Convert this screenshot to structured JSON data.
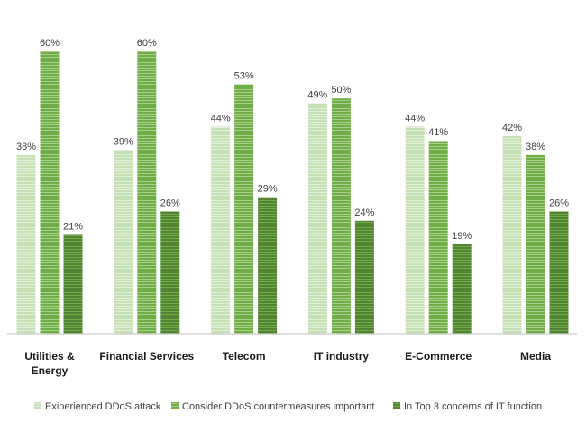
{
  "chart_data": {
    "type": "bar",
    "categories": [
      "Utilities & Energy",
      "Financial Services",
      "Telecom",
      "IT industry",
      "E-Commerce",
      "Media"
    ],
    "category_lines": [
      [
        "Utilities  &",
        "Energy"
      ],
      [
        "Financial Services"
      ],
      [
        "Telecom"
      ],
      [
        "IT industry"
      ],
      [
        "E-Commerce"
      ],
      [
        "Media"
      ]
    ],
    "series": [
      {
        "name": "Exiperienced DDoS attack",
        "values": [
          38,
          39,
          44,
          49,
          44,
          42
        ],
        "labels": [
          "38%",
          "39%",
          "44%",
          "49%",
          "44%",
          "42%"
        ],
        "color": "#c5e0b4",
        "stripe": "#e2efda"
      },
      {
        "name": "Consider DDoS countermeasures important",
        "values": [
          60,
          60,
          53,
          50,
          41,
          38
        ],
        "labels": [
          "60%",
          "60%",
          "53%",
          "50%",
          "41%",
          "38%"
        ],
        "color": "#70ad47",
        "stripe": "#a9d18e"
      },
      {
        "name": "In Top 3 concerns of IT function",
        "values": [
          21,
          26,
          29,
          24,
          19,
          26
        ],
        "labels": [
          "21%",
          "26%",
          "29%",
          "24%",
          "19%",
          "26%"
        ],
        "color": "#548235",
        "stripe": "#70ad47"
      }
    ],
    "unit": "%",
    "ylim": [
      0,
      60
    ],
    "grid": false,
    "legend_position": "bottom"
  }
}
